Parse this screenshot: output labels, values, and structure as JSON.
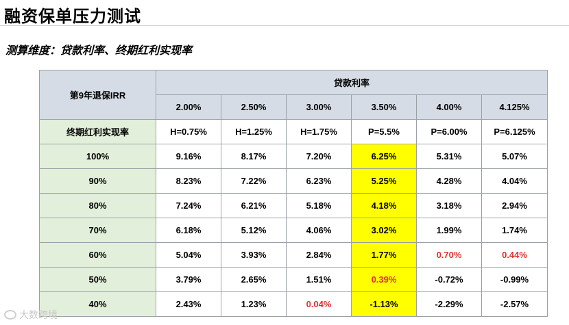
{
  "title": "融资保单压力测试",
  "subtitle": "测算维度：贷款利率、终期红利实现率",
  "table": {
    "corner": "第9年退保IRR",
    "col_group": "贷款利率",
    "row_group": "终期红利实现率",
    "columns": [
      {
        "rate": "2.00%",
        "hp": "H=0.75%"
      },
      {
        "rate": "2.50%",
        "hp": "H=1.25%"
      },
      {
        "rate": "3.00%",
        "hp": "H=1.75%"
      },
      {
        "rate": "3.50%",
        "hp": "P=5.5%"
      },
      {
        "rate": "4.00%",
        "hp": "P=6.00%"
      },
      {
        "rate": "4.125%",
        "hp": "P=6.125%"
      }
    ],
    "rows": [
      {
        "label": "100%",
        "values": [
          "9.16%",
          "8.17%",
          "7.20%",
          "6.25%",
          "5.31%",
          "5.07%"
        ],
        "red": []
      },
      {
        "label": "90%",
        "values": [
          "8.23%",
          "7.22%",
          "6.23%",
          "5.25%",
          "4.28%",
          "4.04%"
        ],
        "red": []
      },
      {
        "label": "80%",
        "values": [
          "7.24%",
          "6.21%",
          "5.18%",
          "4.18%",
          "3.18%",
          "2.94%"
        ],
        "red": []
      },
      {
        "label": "70%",
        "values": [
          "6.18%",
          "5.12%",
          "4.06%",
          "3.02%",
          "1.99%",
          "1.74%"
        ],
        "red": []
      },
      {
        "label": "60%",
        "values": [
          "5.04%",
          "3.93%",
          "2.84%",
          "1.77%",
          "0.70%",
          "0.44%"
        ],
        "red": [
          4,
          5
        ]
      },
      {
        "label": "50%",
        "values": [
          "3.79%",
          "2.65%",
          "1.51%",
          "0.39%",
          "-0.72%",
          "-0.99%"
        ],
        "red": [
          3
        ]
      },
      {
        "label": "40%",
        "values": [
          "2.43%",
          "1.23%",
          "0.04%",
          "-1.13%",
          "-2.29%",
          "-2.57%"
        ],
        "red": [
          2
        ]
      }
    ],
    "highlight_column": 3,
    "highlight_color": "#ffff00",
    "red_color": "#e03131"
  },
  "watermark": "大数跨境"
}
